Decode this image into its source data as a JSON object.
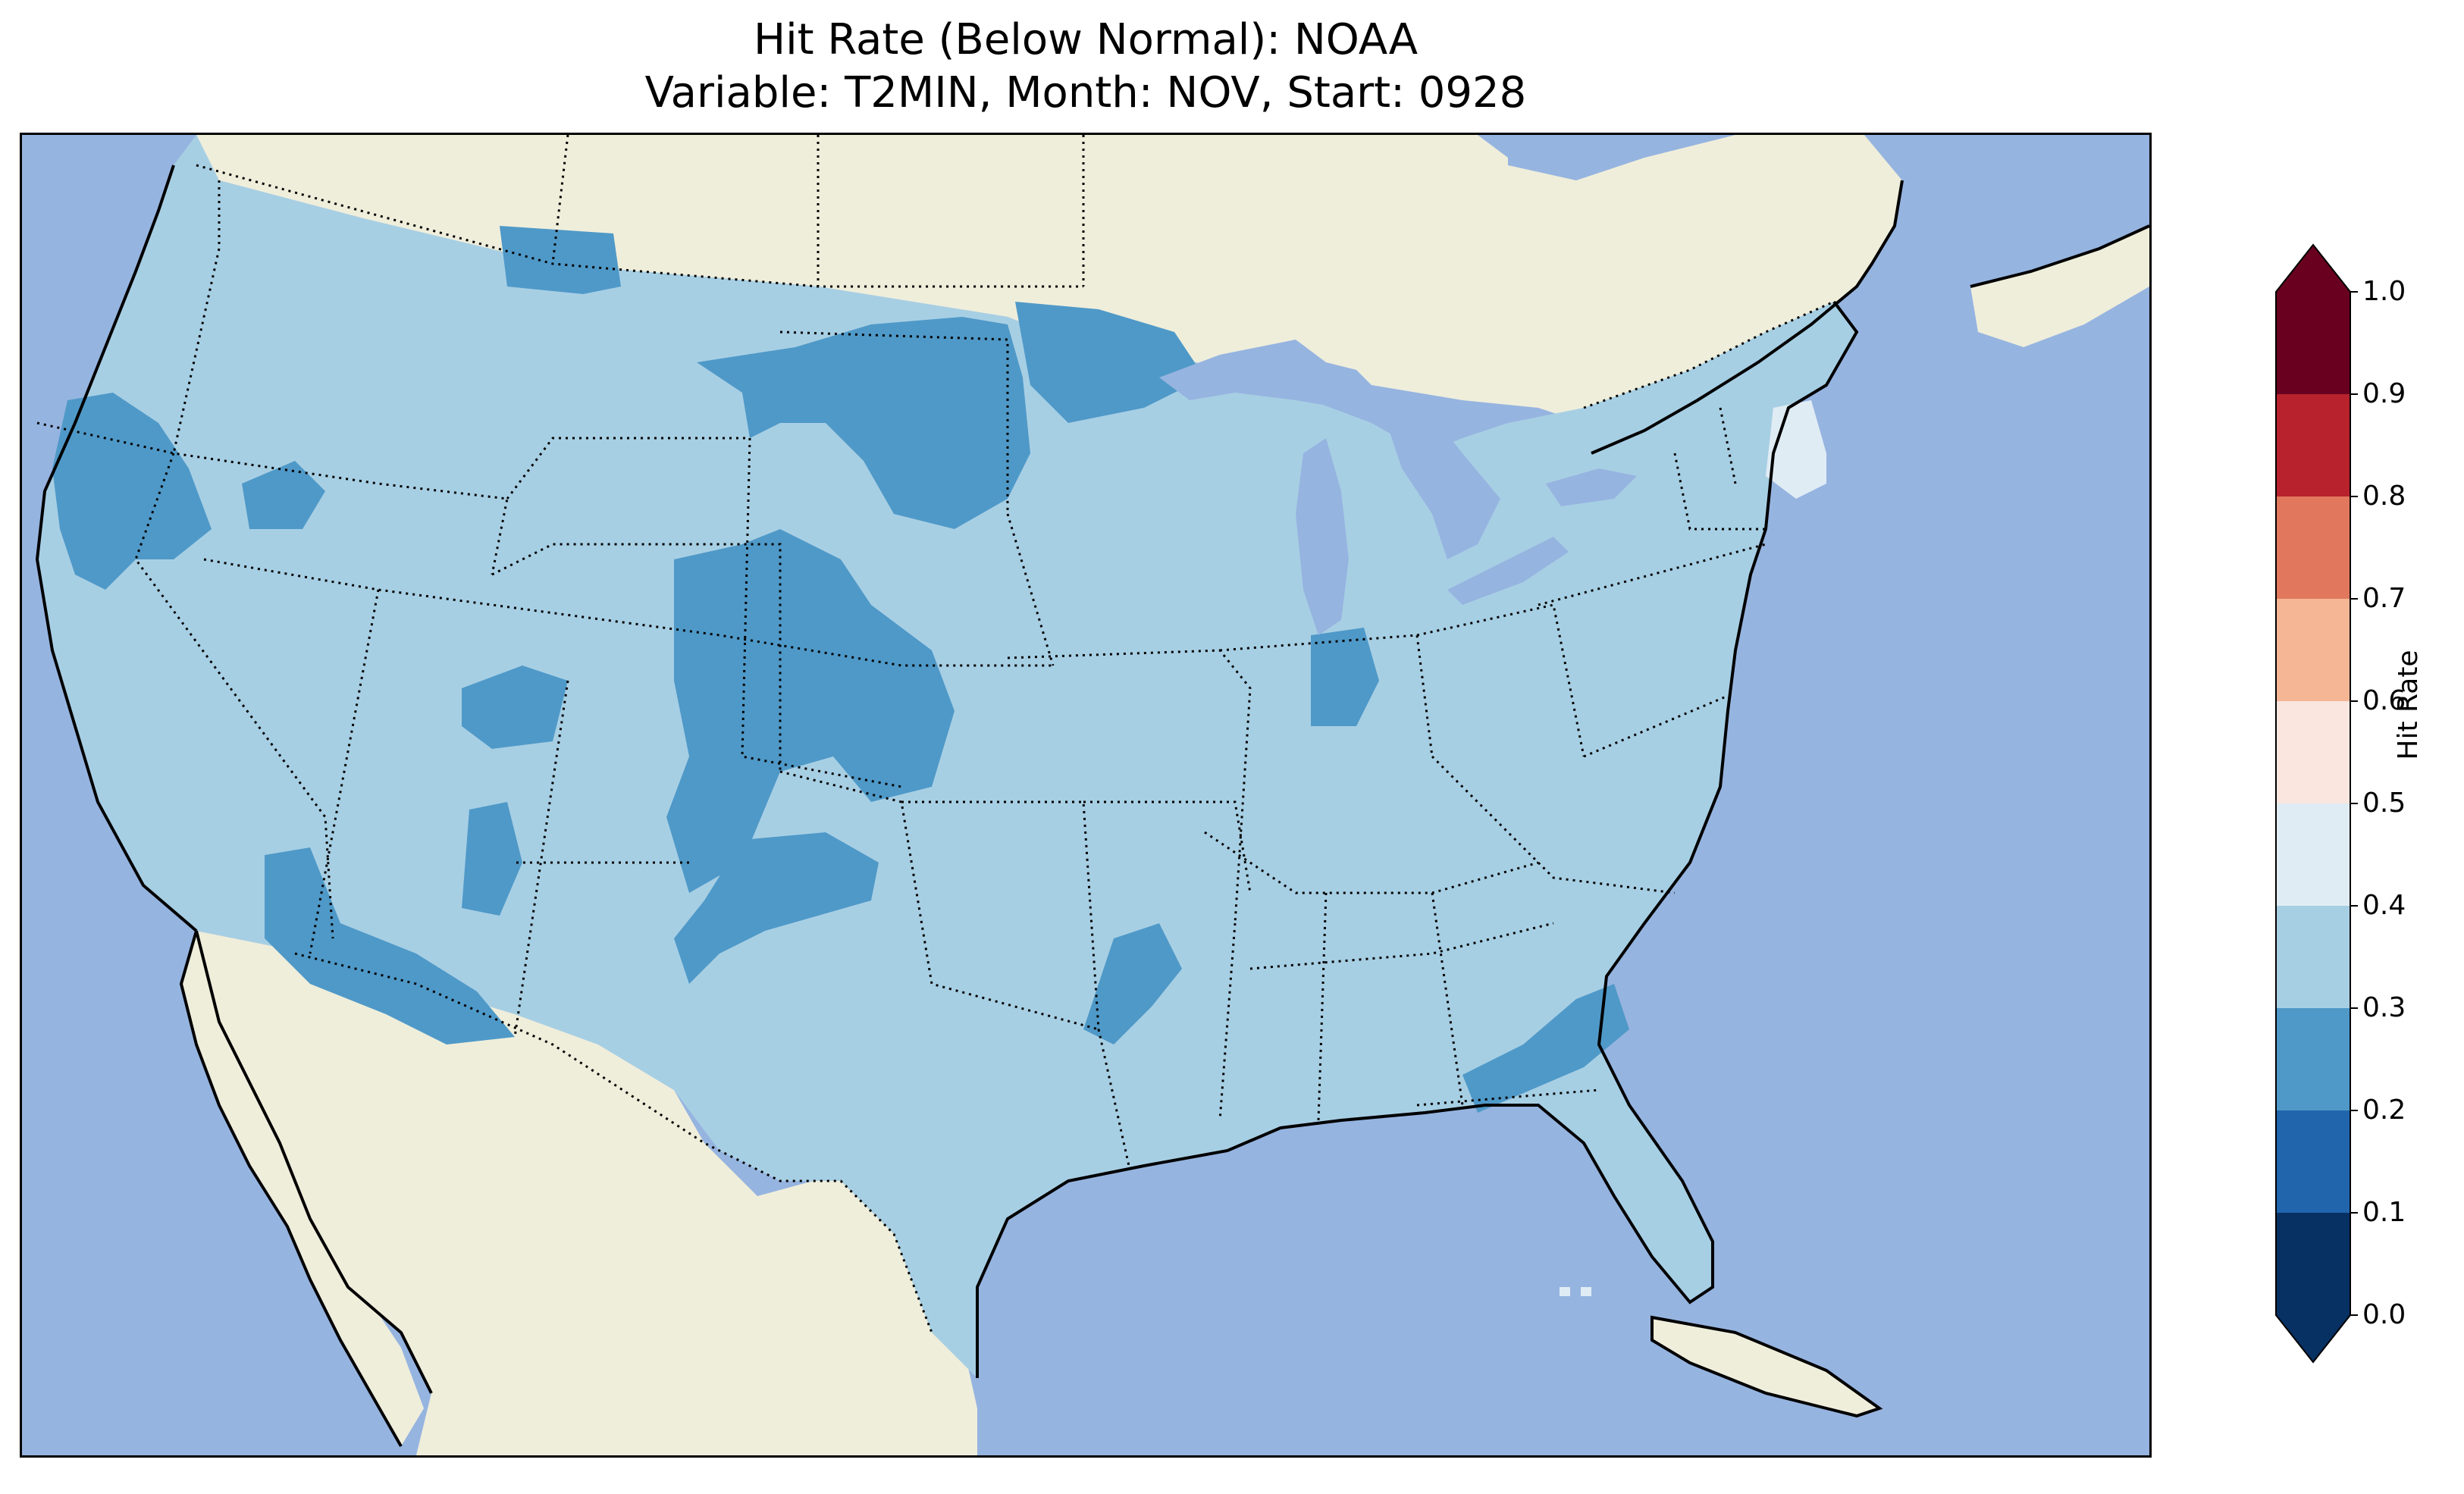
{
  "title": {
    "line1": "Hit Rate (Below Normal): NOAA",
    "line2": "Variable: T2MIN, Month: NOV, Start: 0928"
  },
  "colors": {
    "ocean": "#96b4e0",
    "land_outside": "#efeedb",
    "bin_0_0": "#073163",
    "bin_0_1": "#2166ac",
    "bin_0_2": "#4f99c8",
    "bin_0_3": "#a7cfe4",
    "bin_0_4": "#e0ecf4",
    "bin_0_5": "#fae6df",
    "bin_0_6": "#f5b695",
    "bin_0_7": "#e1785d",
    "bin_0_8": "#b7222d",
    "bin_0_9": "#69001f",
    "boundary": "#000000"
  },
  "colorbar": {
    "label": "Hit Rate",
    "ticks": [
      "0.0",
      "0.1",
      "0.2",
      "0.3",
      "0.4",
      "0.5",
      "0.6",
      "0.7",
      "0.8",
      "0.9",
      "1.0"
    ],
    "extend": "both"
  },
  "map_data": {
    "region": "CONUS",
    "dominant_hit_rate_bin": "0.3-0.4",
    "regions_0_2_to_0_3": [
      "Northern California coast",
      "Northern Montana",
      "Eastern Montana / Western Dakotas",
      "Northern Minnesota",
      "Western Nebraska / South Dakota",
      "Colorado",
      "Western Kansas",
      "Southern Arizona / Southern California desert",
      "Northern Arizona",
      "Southeast Colorado / Northeast New Mexico",
      "Southern Indiana",
      "Arkansas",
      "South Carolina / Georgia coast",
      "Central Utah"
    ],
    "regions_0_4_to_0_5": [
      "Southern New Hampshire / Massachusetts",
      "Florida Keys"
    ]
  }
}
